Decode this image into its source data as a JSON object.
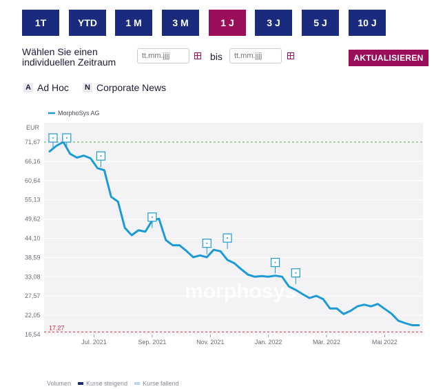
{
  "range_buttons": [
    {
      "label": "1T",
      "active": false
    },
    {
      "label": "YTD",
      "active": false
    },
    {
      "label": "1 M",
      "active": false
    },
    {
      "label": "3 M",
      "active": false
    },
    {
      "label": "1 J",
      "active": true
    },
    {
      "label": "3 J",
      "active": false
    },
    {
      "label": "5 J",
      "active": false
    },
    {
      "label": "10 J",
      "active": false
    }
  ],
  "period": {
    "label_line1": "Wählen Sie einen",
    "label_line2": "individuellen Zeitraum",
    "from_placeholder": "tt.mm.jjjj",
    "to_label": "bis",
    "to_placeholder": "tt.mm.jjjj",
    "update_label": "AKTUALISIEREN"
  },
  "news_keys": [
    {
      "badge": "A",
      "label": "Ad Hoc"
    },
    {
      "badge": "N",
      "label": "Corporate News"
    }
  ],
  "colors": {
    "primary": "#1a2a7c",
    "accent": "#9b0f5a",
    "line": "#1c9ad6",
    "max_line": "#5fa83a",
    "min_line": "#d0243c"
  },
  "chart_data": {
    "type": "line",
    "series": [
      {
        "name": "MorphoSys AG",
        "values": [
          69.0,
          70.6,
          71.7,
          68.3,
          67.2,
          67.8,
          67.0,
          64.2,
          63.6,
          56.0,
          54.6,
          47.1,
          45.0,
          46.4,
          46.0,
          49.2,
          49.7,
          43.6,
          42.1,
          42.1,
          40.5,
          38.7,
          39.2,
          38.7,
          40.8,
          40.4,
          37.9,
          37.0,
          35.3,
          33.7,
          33.1,
          33.3,
          33.1,
          33.4,
          33.1,
          30.3,
          29.3,
          28.1,
          27.0,
          27.6,
          26.7,
          24.0,
          24.0,
          22.4,
          23.3,
          24.6,
          25.1,
          24.6,
          25.3,
          23.9,
          22.5,
          20.5,
          19.8,
          19.2,
          19.2
        ]
      }
    ],
    "yunit": "EUR",
    "yticks": [
      "71,67",
      "66,16",
      "60,64",
      "55,13",
      "49,62",
      "44,10",
      "38,59",
      "33,08",
      "27,57",
      "22,05",
      "16,54"
    ],
    "yrange": [
      16.54,
      71.67
    ],
    "max_value": 71.67,
    "min_value": 17.27,
    "min_label": "17,27",
    "xticks": [
      {
        "label": "Jul. 2021",
        "index": 6.5
      },
      {
        "label": "Sep. 2021",
        "index": 15
      },
      {
        "label": "Nov. 2021",
        "index": 23.5
      },
      {
        "label": "Jan. 2022",
        "index": 32
      },
      {
        "label": "Mär. 2022",
        "index": 40.5
      },
      {
        "label": "Mai 2022",
        "index": 49
      }
    ],
    "markers": [
      {
        "index": 0.5,
        "value": 71.67
      },
      {
        "index": 2.5,
        "value": 71.67
      },
      {
        "index": 7.5,
        "value": 66.5
      },
      {
        "index": 15,
        "value": 49.0
      },
      {
        "index": 23,
        "value": 41.5
      },
      {
        "index": 26,
        "value": 43.0
      },
      {
        "index": 33,
        "value": 36.0
      },
      {
        "index": 36,
        "value": 33.0
      }
    ],
    "watermark": "morphosys",
    "grid": true
  },
  "volume_legend": {
    "title": "Volumen",
    "rising": "Kurse steigend",
    "falling": "Kurse fallend",
    "rising_color": "#1a2a7c",
    "falling_color": "#b8d8ef"
  }
}
